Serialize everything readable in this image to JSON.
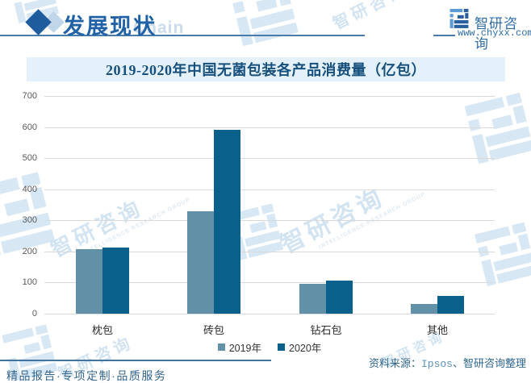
{
  "header": {
    "title": "发展现状",
    "watermark": "Chain",
    "brand": {
      "name": "智研咨询",
      "url": "www.chyxx.com"
    }
  },
  "chart_data": {
    "type": "bar",
    "title": "2019-2020年中国无菌包装各产品消费量（亿包）",
    "categories": [
      "枕包",
      "砖包",
      "钻石包",
      "其他"
    ],
    "series": [
      {
        "name": "2019年",
        "color": "#6290a7",
        "values": [
          207,
          330,
          97,
          31
        ]
      },
      {
        "name": "2020年",
        "color": "#09608a",
        "values": [
          212,
          590,
          106,
          57
        ]
      }
    ],
    "ylim": [
      0,
      700
    ],
    "ytick_interval": 100,
    "xlabel": "",
    "ylabel": "",
    "grid": true,
    "legend_position": "bottom"
  },
  "source": {
    "prefix": "资料来源：",
    "name": "Ipsos",
    "suffix": "、智研咨询整理"
  },
  "footer": {
    "text": "精品报告·专项定制·品质服务"
  },
  "watermark": {
    "cn": "智研咨询",
    "en": "INTELLIGENCE RESEARCH GROUP"
  },
  "colors": {
    "title_band_bg": "#e4f1fa",
    "chart_title_text": "#17507d",
    "header_accent": "#2161a5",
    "gridline": "#d9d9d9",
    "axis_label": "#595959",
    "source_text": "#2e6690",
    "footer_text": "#33658e"
  }
}
